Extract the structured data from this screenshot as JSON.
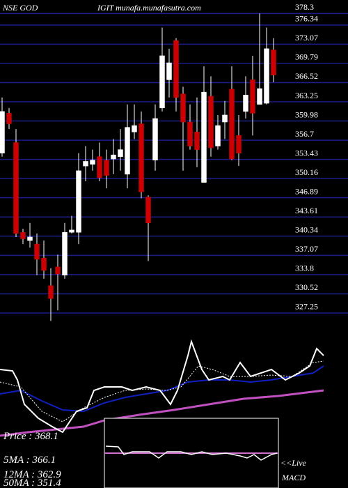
{
  "chart_data": {
    "type": "candlestick",
    "title_left": "NSE GOD",
    "title_right": "IGIT munafa.munafasutra.com",
    "up_color": "#ffffff",
    "down_color": "#cc0000",
    "wick_color": "#ffffff",
    "grid_color": "#1c1c8a",
    "ylim": [
      325.7,
      380.6
    ],
    "yticks": [
      378.3,
      376.34,
      373.07,
      369.79,
      366.52,
      363.25,
      359.98,
      356.7,
      353.43,
      350.16,
      346.89,
      343.61,
      340.34,
      337.07,
      333.8,
      330.52,
      327.25
    ],
    "grid": true,
    "open": [
      354.5,
      361.3,
      356.3,
      341.0,
      339.6,
      339.0,
      336.6,
      331.9,
      335.1,
      333.7,
      341.0,
      341.0,
      352.3,
      352.6,
      353.9,
      353.3,
      353.5,
      353.9,
      350.9,
      358.1,
      359.5,
      347.0,
      353.3,
      362.2,
      367.0,
      373.7,
      364.6,
      359.8,
      358.1,
      349.5,
      364.2,
      355.7,
      359.8,
      365.4,
      357.5,
      361.6,
      367.0,
      362.8,
      363.0,
      372.1
    ],
    "high": [
      364.0,
      362.2,
      358.6,
      341.6,
      342.6,
      340.8,
      339.6,
      334.9,
      337.2,
      342.6,
      343.8,
      354.5,
      355.7,
      355.1,
      356.3,
      355.1,
      356.9,
      358.6,
      362.8,
      362.8,
      361.6,
      347.3,
      362.8,
      375.9,
      372.3,
      374.1,
      365.8,
      362.8,
      364.0,
      369.3,
      367.6,
      361.0,
      363.4,
      369.3,
      361.0,
      367.6,
      371.1,
      378.3,
      375.9,
      374.1
    ],
    "low": [
      353.9,
      358.6,
      340.2,
      339.0,
      338.4,
      333.7,
      333.1,
      325.9,
      327.7,
      333.1,
      340.8,
      339.0,
      349.7,
      351.5,
      349.7,
      348.5,
      350.9,
      351.5,
      348.5,
      356.9,
      346.8,
      336.1,
      351.5,
      361.6,
      364.0,
      361.6,
      351.5,
      355.1,
      352.1,
      349.5,
      353.9,
      355.1,
      356.9,
      353.3,
      352.3,
      360.4,
      357.5,
      362.8,
      362.8,
      366.6
    ],
    "close": [
      361.6,
      359.5,
      340.8,
      339.9,
      340.2,
      336.4,
      334.5,
      329.7,
      333.9,
      341.0,
      341.4,
      351.5,
      353.1,
      353.3,
      350.3,
      350.7,
      354.2,
      355.1,
      358.9,
      359.2,
      347.9,
      342.6,
      360.4,
      371.1,
      369.9,
      364.0,
      359.8,
      355.7,
      355.1,
      364.9,
      355.4,
      359.2,
      361.0,
      353.5,
      354.5,
      364.4,
      361.3,
      365.5,
      372.3,
      367.8
    ],
    "indicators": [
      {
        "label": "Price :",
        "value": 368.1
      },
      {
        "label": "5MA :",
        "value": 366.1
      },
      {
        "label": "12MA :",
        "value": 362.9
      },
      {
        "label": "50MA :",
        "value": 351.4
      }
    ],
    "live_label": "<<Live",
    "macd_label": "MACD"
  }
}
